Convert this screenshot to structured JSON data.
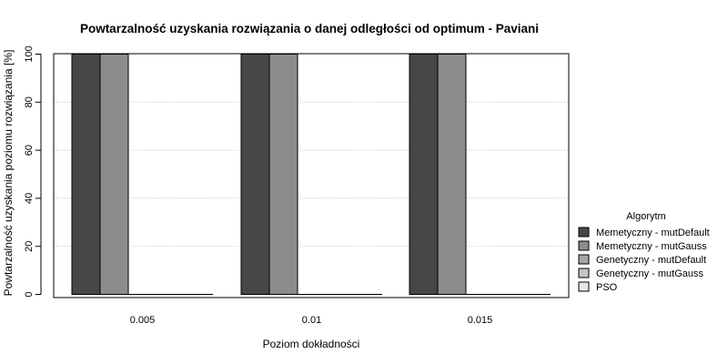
{
  "chart_data": {
    "type": "bar",
    "title": "Powtarzalność uzyskania rozwiązania o danej odległości od optimum - Paviani",
    "xlabel": "Poziom dokładności",
    "ylabel": "Powtarzalność uzyskania poziomu rozwiązania [%]",
    "categories": [
      "0.005",
      "0.01",
      "0.015"
    ],
    "ylim": [
      0,
      100
    ],
    "yticks": [
      0,
      20,
      40,
      60,
      80,
      100
    ],
    "grid": "horizontal-dotted",
    "legend_title": "Algorytm",
    "legend_position": "right",
    "series": [
      {
        "name": "Memetyczny - mutDefault",
        "color": "#474747",
        "values": [
          100,
          100,
          100
        ]
      },
      {
        "name": "Memetyczny - mutGauss",
        "color": "#8c8c8c",
        "values": [
          100,
          100,
          100
        ]
      },
      {
        "name": "Genetyczny - mutDefault",
        "color": "#a6a6a6",
        "values": [
          0,
          0,
          0
        ]
      },
      {
        "name": "Genetyczny - mutGauss",
        "color": "#c4c4c4",
        "values": [
          0,
          0,
          0
        ]
      },
      {
        "name": "PSO",
        "color": "#e6e6e6",
        "values": [
          0,
          0,
          0
        ]
      }
    ]
  }
}
